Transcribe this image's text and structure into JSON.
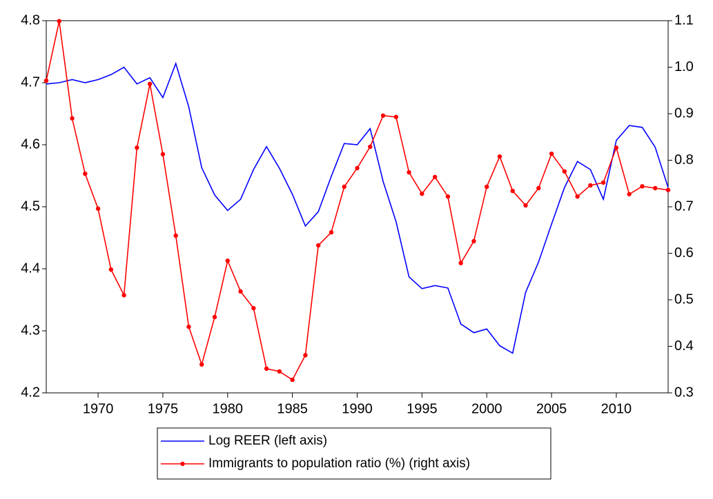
{
  "chart_data": {
    "type": "line",
    "x": [
      1966,
      1967,
      1968,
      1969,
      1970,
      1971,
      1972,
      1973,
      1974,
      1975,
      1976,
      1977,
      1978,
      1979,
      1980,
      1981,
      1982,
      1983,
      1984,
      1985,
      1986,
      1987,
      1988,
      1989,
      1990,
      1991,
      1992,
      1993,
      1994,
      1995,
      1996,
      1997,
      1998,
      1999,
      2000,
      2001,
      2002,
      2003,
      2004,
      2005,
      2006,
      2007,
      2008,
      2009,
      2010,
      2011,
      2012,
      2013,
      2014
    ],
    "xlim": [
      1966,
      2014
    ],
    "xticks": [
      1970,
      1975,
      1980,
      1985,
      1990,
      1995,
      2000,
      2005,
      2010
    ],
    "ylim": [
      4.2,
      4.8
    ],
    "yticks": [
      4.2,
      4.3,
      4.4,
      4.5,
      4.6,
      4.7,
      4.8
    ],
    "y2lim": [
      0.3,
      1.1
    ],
    "y2ticks": [
      0.3,
      0.4,
      0.5,
      0.6,
      0.7,
      0.8,
      0.9,
      {
        "value": 1,
        "label": "1.0"
      },
      1.1
    ],
    "legend": "bottom",
    "series": [
      {
        "name": "Log REER (left axis)",
        "color": "#0000ff",
        "markers": false,
        "values": [
          4.698,
          4.7,
          4.705,
          4.7,
          4.705,
          4.713,
          4.725,
          4.698,
          4.708,
          4.676,
          4.731,
          4.661,
          4.563,
          4.519,
          4.494,
          4.512,
          4.56,
          4.597,
          4.562,
          4.52,
          4.469,
          4.492,
          4.549,
          4.602,
          4.6,
          4.626,
          4.541,
          4.476,
          4.387,
          4.368,
          4.373,
          4.369,
          4.311,
          4.297,
          4.303,
          4.276,
          4.264,
          4.362,
          4.411,
          4.472,
          4.531,
          4.573,
          4.56,
          4.512,
          4.607,
          4.631,
          4.628,
          4.596,
          4.531
        ]
      },
      {
        "name": "Immigrants to population ratio (%) (right axis)",
        "color": "#ff0000",
        "axis": "y2",
        "markers": true,
        "values": [
          0.971,
          1.099,
          0.89,
          0.771,
          0.696,
          0.565,
          0.51,
          0.827,
          0.964,
          0.813,
          0.638,
          0.442,
          0.361,
          0.463,
          0.584,
          0.518,
          0.482,
          0.352,
          0.346,
          0.328,
          0.381,
          0.617,
          0.645,
          0.743,
          0.783,
          0.829,
          0.896,
          0.893,
          0.774,
          0.728,
          0.764,
          0.722,
          0.579,
          0.626,
          0.743,
          0.808,
          0.734,
          0.703,
          0.74,
          0.814,
          0.776,
          0.722,
          0.746,
          0.752,
          0.827,
          0.727,
          0.744,
          0.74,
          0.736
        ]
      }
    ]
  }
}
